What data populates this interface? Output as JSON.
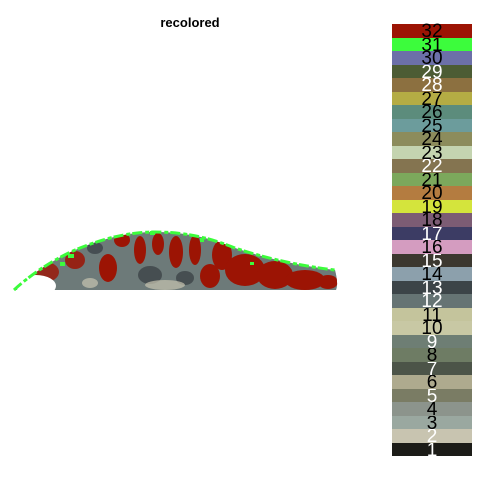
{
  "title": "recolored",
  "legend": [
    {
      "label": "1",
      "color": "#1c1c18",
      "text": "#ffffff"
    },
    {
      "label": "2",
      "color": "#c8c4b0",
      "text": "#ffffff"
    },
    {
      "label": "3",
      "color": "#9aa8a0",
      "text": "#000000"
    },
    {
      "label": "4",
      "color": "#8c948c",
      "text": "#000000"
    },
    {
      "label": "5",
      "color": "#7a7c64",
      "text": "#ffffff"
    },
    {
      "label": "6",
      "color": "#aeaa8e",
      "text": "#000000"
    },
    {
      "label": "7",
      "color": "#4c5448",
      "text": "#ffffff"
    },
    {
      "label": "8",
      "color": "#6e7c64",
      "text": "#000000"
    },
    {
      "label": "9",
      "color": "#6e7e74",
      "text": "#ffffff"
    },
    {
      "label": "10",
      "color": "#c8c8a4",
      "text": "#000000"
    },
    {
      "label": "11",
      "color": "#c4c49c",
      "text": "#000000"
    },
    {
      "label": "12",
      "color": "#667474",
      "text": "#ffffff"
    },
    {
      "label": "13",
      "color": "#3c4448",
      "text": "#ffffff"
    },
    {
      "label": "14",
      "color": "#8ca0ac",
      "text": "#000000"
    },
    {
      "label": "15",
      "color": "#3c3830",
      "text": "#ffffff"
    },
    {
      "label": "16",
      "color": "#d49cc0",
      "text": "#000000"
    },
    {
      "label": "17",
      "color": "#3c3c64",
      "text": "#ffffff"
    },
    {
      "label": "18",
      "color": "#7c5c74",
      "text": "#000000"
    },
    {
      "label": "19",
      "color": "#d4e43c",
      "text": "#000000"
    },
    {
      "label": "20",
      "color": "#b47c40",
      "text": "#000000"
    },
    {
      "label": "21",
      "color": "#7ca85c",
      "text": "#000000"
    },
    {
      "label": "22",
      "color": "#847450",
      "text": "#ffffff"
    },
    {
      "label": "23",
      "color": "#c4d4b0",
      "text": "#000000"
    },
    {
      "label": "24",
      "color": "#8c8c5c",
      "text": "#000000"
    },
    {
      "label": "25",
      "color": "#6c9c9c",
      "text": "#000000"
    },
    {
      "label": "26",
      "color": "#5c8c7c",
      "text": "#000000"
    },
    {
      "label": "27",
      "color": "#b4ac44",
      "text": "#000000"
    },
    {
      "label": "28",
      "color": "#8c7040",
      "text": "#ffffff"
    },
    {
      "label": "29",
      "color": "#4c5c34",
      "text": "#ffffff"
    },
    {
      "label": "30",
      "color": "#6c70a8",
      "text": "#000000"
    },
    {
      "label": "31",
      "color": "#3cfc3c",
      "text": "#000000"
    },
    {
      "label": "32",
      "color": "#9c1404",
      "text": "#000000"
    }
  ],
  "image": {
    "description_icon": "fish-silhouette-icon",
    "dominant_colors": [
      "#9c1404",
      "#3cfc3c",
      "#667474",
      "#3c4448",
      "#c8c4b0"
    ]
  }
}
